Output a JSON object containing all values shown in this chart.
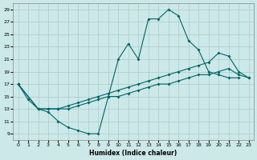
{
  "xlabel": "Humidex (Indice chaleur)",
  "xlim": [
    -0.5,
    23.5
  ],
  "ylim": [
    8,
    30
  ],
  "xticks": [
    0,
    1,
    2,
    3,
    4,
    5,
    6,
    7,
    8,
    9,
    10,
    11,
    12,
    13,
    14,
    15,
    16,
    17,
    18,
    19,
    20,
    21,
    22,
    23
  ],
  "yticks": [
    9,
    11,
    13,
    15,
    17,
    19,
    21,
    23,
    25,
    27,
    29
  ],
  "bg_color": "#cce8e8",
  "line_color": "#006666",
  "line1_x": [
    0,
    1,
    2,
    3,
    4,
    5,
    6,
    7,
    8,
    9,
    10,
    11,
    12,
    13,
    14,
    15,
    16,
    17,
    18,
    19,
    20,
    21,
    22
  ],
  "line1_y": [
    17,
    14.5,
    13,
    12.5,
    11,
    10,
    9.5,
    9,
    9,
    15,
    21,
    23.5,
    21,
    27.5,
    27.5,
    29,
    28,
    24,
    22.5,
    19,
    18.5,
    18,
    18
  ],
  "line2_x": [
    0,
    2,
    3,
    4,
    5,
    6,
    7,
    8,
    9,
    10,
    11,
    12,
    13,
    14,
    15,
    16,
    17,
    18,
    19,
    20,
    21,
    22,
    23
  ],
  "line2_y": [
    17,
    13,
    13,
    13,
    13.5,
    14,
    14.5,
    15,
    15.5,
    16,
    16.5,
    17,
    17.5,
    18,
    18.5,
    19,
    19.5,
    20,
    20.5,
    22,
    21.5,
    19,
    18
  ],
  "line3_x": [
    0,
    2,
    3,
    4,
    5,
    6,
    7,
    8,
    9,
    10,
    11,
    12,
    13,
    14,
    15,
    16,
    17,
    18,
    19,
    20,
    21,
    22,
    23
  ],
  "line3_y": [
    17,
    13,
    13,
    13,
    13,
    13.5,
    14,
    14.5,
    15,
    15,
    15.5,
    16,
    16.5,
    17,
    17,
    17.5,
    18,
    18.5,
    18.5,
    19,
    19.5,
    18.5,
    18
  ]
}
